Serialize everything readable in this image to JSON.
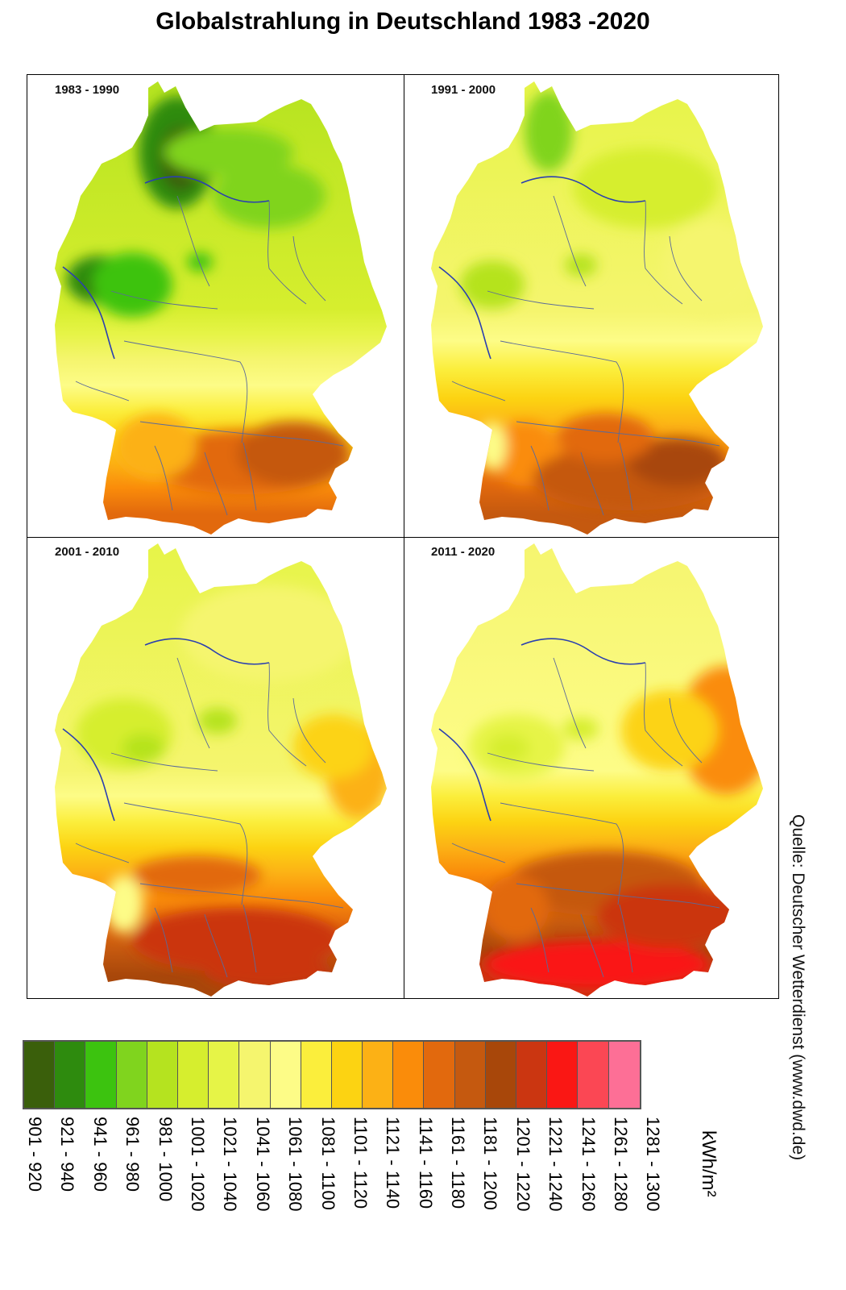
{
  "title": "Globalstrahlung in Deutschland 1983 -2020",
  "panels": [
    {
      "label": "1983 - 1990"
    },
    {
      "label": "1991 - 2000"
    },
    {
      "label": "2001 - 2010"
    },
    {
      "label": "2011 - 2020"
    }
  ],
  "legend": {
    "unit": "kWh/m²",
    "classes": [
      {
        "label": "901 - 920",
        "color": "#3a5f0b"
      },
      {
        "label": "921 - 940",
        "color": "#2e8b0e"
      },
      {
        "label": "941 - 960",
        "color": "#3cc30f"
      },
      {
        "label": "961 - 980",
        "color": "#80d41e"
      },
      {
        "label": "981 - 1000",
        "color": "#b5e31f"
      },
      {
        "label": "1001 - 1020",
        "color": "#d6ee2e"
      },
      {
        "label": "1021 - 1040",
        "color": "#e6f447"
      },
      {
        "label": "1041 - 1060",
        "color": "#f5f56e"
      },
      {
        "label": "1061 - 1080",
        "color": "#fdfc87"
      },
      {
        "label": "1081 - 1100",
        "color": "#fbee3c"
      },
      {
        "label": "1101 - 1120",
        "color": "#fcd312"
      },
      {
        "label": "1121 - 1140",
        "color": "#fcb115"
      },
      {
        "label": "1141 - 1160",
        "color": "#fa8c0a"
      },
      {
        "label": "1161 - 1180",
        "color": "#e2690d"
      },
      {
        "label": "1181 - 1200",
        "color": "#c5590f"
      },
      {
        "label": "1201 - 1220",
        "color": "#a8470a"
      },
      {
        "label": "1221 - 1240",
        "color": "#cb3611"
      },
      {
        "label": "1241 - 1260",
        "color": "#fa1714"
      },
      {
        "label": "1261 - 1280",
        "color": "#fb4754"
      },
      {
        "label": "1281 - 1300",
        "color": "#fd6f96"
      }
    ]
  },
  "source": "Quelle: Deutscher Wetterdienst (www.dwd.de)"
}
